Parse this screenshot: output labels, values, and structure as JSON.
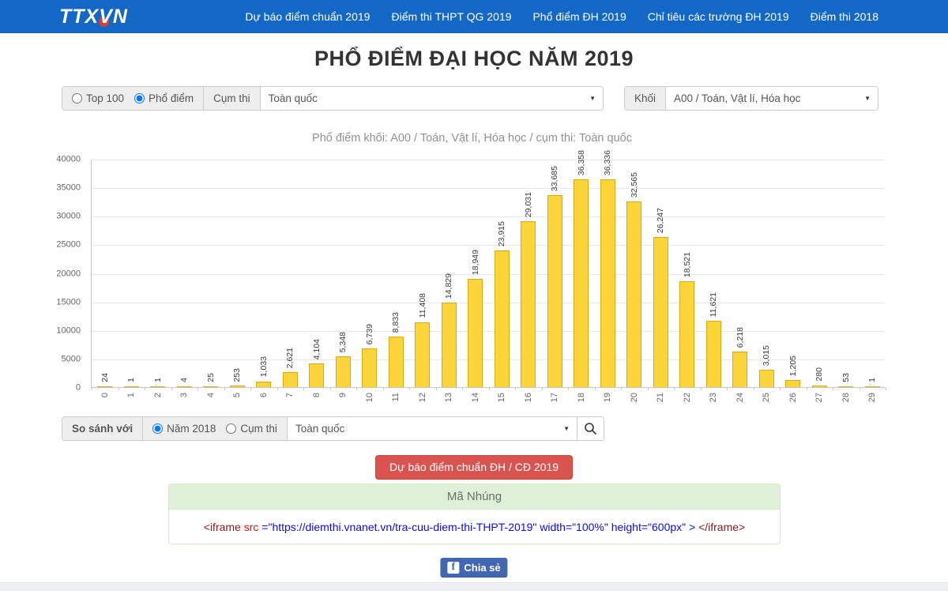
{
  "colors": {
    "navbar_blue": "#1268c4",
    "bar_fill": "#fcd53a",
    "bar_border": "#dfa713",
    "forecast_button_red": "#d9534f",
    "facebook_blue": "#4267b2",
    "panel_green_bg": "#dff0d8",
    "panel_green_border": "#d6e9c6"
  },
  "nav": {
    "logo_prefix": "TTX",
    "logo_v": "V",
    "logo_suffix": "N",
    "items": [
      "Dự báo điểm chuẩn 2019",
      "Điểm thi THPT QG 2019",
      "Phổ điểm ĐH 2019",
      "Chỉ tiêu các trường ĐH 2019",
      "Điểm thi 2018"
    ]
  },
  "page_title": "PHỔ ĐIỂM ĐẠI HỌC NĂM 2019",
  "filters": {
    "top100_label": "Top 100",
    "pho_diem_label": "Phổ điểm",
    "cum_thi_label": "Cụm thi",
    "region_value": "Toàn quốc",
    "khoi_label": "Khối",
    "khoi_value": "A00 / Toán, Vật lí, Hóa học"
  },
  "compare": {
    "label": "So sánh với",
    "year_label": "Năm 2018",
    "cum_thi_label": "Cụm thi",
    "region_value": "Toàn quốc"
  },
  "forecast_button": "Dự báo điểm chuẩn ĐH / CĐ 2019",
  "embed": {
    "header": "Mã Nhúng",
    "code": {
      "open_tag": "<iframe",
      "attr": " src ",
      "value": "=\"https://diemthi.vnanet.vn/tra-cuu-diem-thi-THPT-2019\" width=\"100%\" height=\"600px\" > ",
      "close_tag": "</iframe>"
    }
  },
  "share_label": "Chia sẻ",
  "chart_data": {
    "type": "bar",
    "title": "Phổ điểm khối: A00 / Toán, Vật lí, Hóa học / cụm thi: Toàn quốc",
    "categories": [
      "0",
      "1",
      "2",
      "3",
      "4",
      "5",
      "6",
      "7",
      "8",
      "9",
      "10",
      "11",
      "12",
      "13",
      "14",
      "15",
      "16",
      "17",
      "18",
      "19",
      "20",
      "21",
      "22",
      "23",
      "24",
      "25",
      "26",
      "27",
      "28",
      "29"
    ],
    "values": [
      24,
      1,
      1,
      4,
      25,
      253,
      1033,
      2621,
      4104,
      5348,
      6739,
      8833,
      11408,
      14829,
      18949,
      23915,
      29031,
      33685,
      36358,
      36336,
      32565,
      26247,
      18521,
      11621,
      6218,
      3015,
      1205,
      280,
      53,
      1
    ],
    "xlabel": "",
    "ylabel": "",
    "ylim": [
      0,
      40000
    ],
    "ytick_step": 5000,
    "grid": true,
    "legend": false,
    "value_labels": true,
    "bar_color": "#fcd53a",
    "bar_border": "#dfa713"
  }
}
